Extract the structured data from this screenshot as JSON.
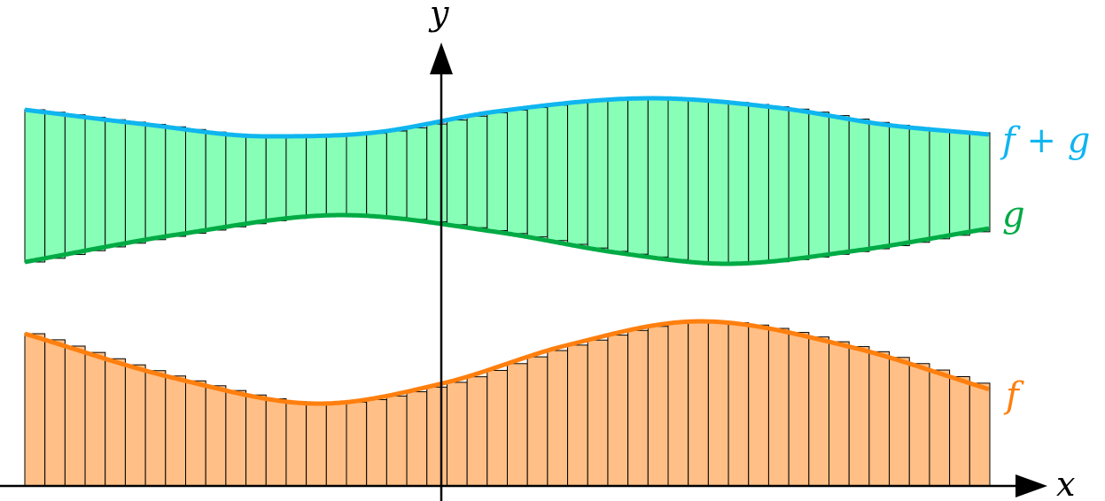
{
  "diagram": {
    "axes": {
      "x_label": "x",
      "y_label": "y"
    },
    "curves": {
      "f": {
        "label": "f",
        "color": "#ff7f0e",
        "fill": "#ffbf86"
      },
      "g": {
        "label": "g",
        "color": "#00aa44",
        "fill": "#87ffb6"
      },
      "f_plus_g": {
        "label": "f + g",
        "color": "#0fb5ef"
      }
    },
    "bar_count": 48,
    "edge_color": "#000000"
  }
}
